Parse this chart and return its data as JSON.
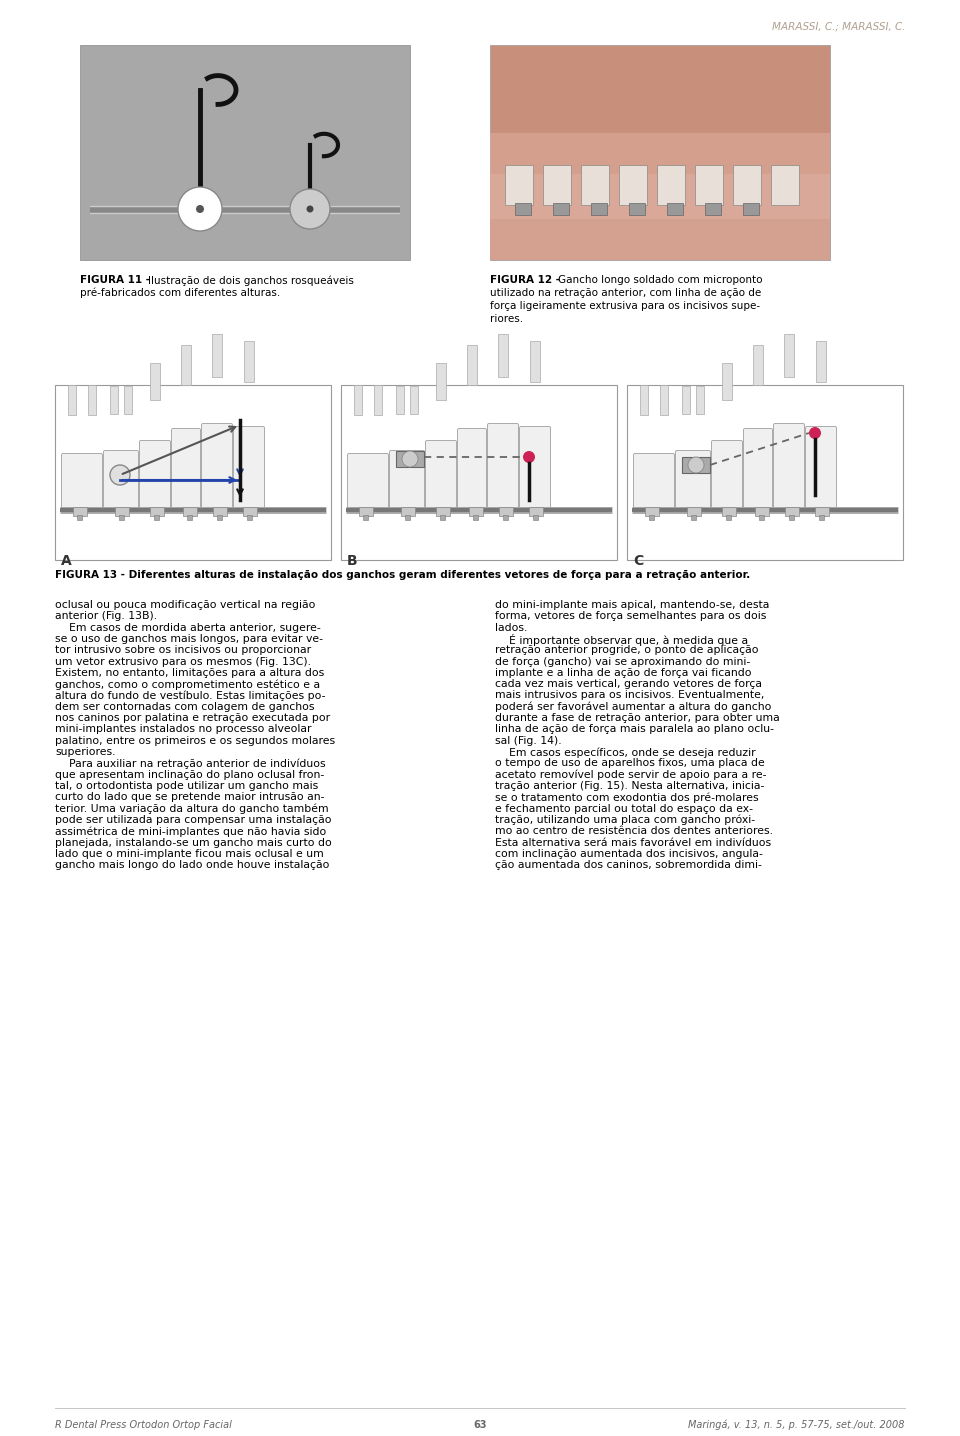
{
  "page_background": "#ffffff",
  "header_text": "MARASSI, C.; MARASSI, C.",
  "header_color": "#b0a090",
  "header_fontsize": 7.5,
  "fig11_caption_bold": "FIGURA 11 - ",
  "fig11_caption_rest": "Ilustração de dois ganchos rosqueáveis\npré-fabricados com diferentes alturas.",
  "fig12_caption_bold": "FIGURA 12 - ",
  "fig12_caption_rest": "Gancho longo soldado com microponto\nutilizado na retração anterior, com linha de ação de\nforça ligeiramente extrusiva para os incisivos supe-\nriores.",
  "fig13_caption": "FIGURA 13 - Diferentes alturas de instalação dos ganchos geram diferentes vetores de força para a retração anterior.",
  "caption_fontsize": 7.5,
  "caption_color": "#000000",
  "label_A": "A",
  "label_B": "B",
  "label_C": "C",
  "label_fontsize": 10,
  "body_text_left": [
    "oclusal ou pouca modificação vertical na região",
    "anterior (Fig. 13B).",
    "    Em casos de mordida aberta anterior, sugere-",
    "se o uso de ganchos mais longos, para evitar ve-",
    "tor intrusivo sobre os incisivos ou proporcionar",
    "um vetor extrusivo para os mesmos (Fig. 13C).",
    "Existem, no entanto, limitações para a altura dos",
    "ganchos, como o comprometimento estético e a",
    "altura do fundo de vestíbulo. Estas limitações po-",
    "dem ser contornadas com colagem de ganchos",
    "nos caninos por palatina e retração executada por",
    "mini-implantes instalados no processo alveolar",
    "palatino, entre os primeiros e os segundos molares",
    "superiores.",
    "    Para auxiliar na retração anterior de indivíduos",
    "que apresentam inclinação do plano oclusal fron-",
    "tal, o ortodontista pode utilizar um gancho mais",
    "curto do lado que se pretende maior intrusão an-",
    "terior. Uma variação da altura do gancho também",
    "pode ser utilizada para compensar uma instalação",
    "assimétrica de mini-implantes que não havia sido",
    "planejada, instalando-se um gancho mais curto do",
    "lado que o mini-implante ficou mais oclusal e um",
    "gancho mais longo do lado onde houve instalação"
  ],
  "body_text_right": [
    "do mini-implante mais apical, mantendo-se, desta",
    "forma, vetores de força semelhantes para os dois",
    "lados.",
    "    É importante observar que, à medida que a",
    "retração anterior progride, o ponto de aplicação",
    "de força (gancho) vai se aproximando do mini-",
    "implante e a linha de ação de força vai ficando",
    "cada vez mais vertical, gerando vetores de força",
    "mais intrusivos para os incisivos. Eventualmente,",
    "poderá ser favorável aumentar a altura do gancho",
    "durante a fase de retração anterior, para obter uma",
    "linha de ação de força mais paralela ao plano oclu-",
    "sal (Fig. 14).",
    "    Em casos específicos, onde se deseja reduzir",
    "o tempo de uso de aparelhos fixos, uma placa de",
    "acetato removível pode servir de apoio para a re-",
    "tração anterior (Fig. 15). Nesta alternativa, inicia-",
    "se o tratamento com exodontia dos pré-molares",
    "e fechamento parcial ou total do espaço da ex-",
    "tração, utilizando uma placa com gancho próxi-",
    "mo ao centro de resistência dos dentes anteriores.",
    "Esta alternativa será mais favorável em indivíduos",
    "com inclinação aumentada dos incisivos, angula-",
    "ção aumentada dos caninos, sobremordida dimi-"
  ],
  "body_fontsize": 7.8,
  "body_color": "#000000",
  "footer_text_left": "R Dental Press Ortodon Ortop Facial",
  "footer_num": "63",
  "footer_text_right": "Maringá, v. 13, n. 5, p. 57-75, set./out. 2008",
  "footer_fontsize": 7.0,
  "footer_color": "#666666"
}
